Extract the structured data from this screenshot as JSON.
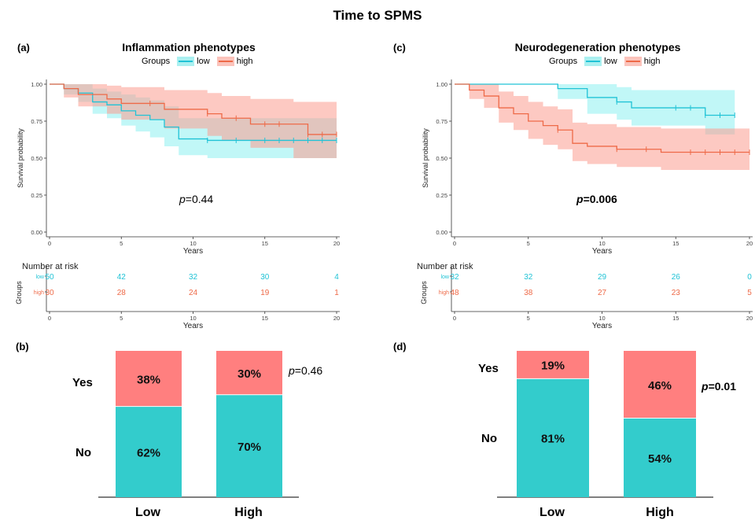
{
  "title": "Time to SPMS",
  "colors": {
    "low_line": "#21c3d6",
    "high_line": "#ee6a48",
    "low_band": "#8ef0f0",
    "high_band": "#fb9c90",
    "bar_no": "#33cccc",
    "bar_yes": "#ff7f7f"
  },
  "chart_data": [
    {
      "panel": "(a)",
      "type": "line",
      "title": "Inflammation phenotypes",
      "legend_title": "Groups",
      "legend": [
        "low",
        "high"
      ],
      "xlabel": "Years",
      "ylabel": "Survival probability",
      "xlim": [
        0,
        20
      ],
      "ylim": [
        0,
        1
      ],
      "xticks": [
        "0",
        "5",
        "10",
        "15",
        "20"
      ],
      "yticks": [
        "0.00",
        "0.25",
        "0.50",
        "0.75",
        "1.00"
      ],
      "pvalue_prefix": "p",
      "pvalue": "=0.44",
      "pvalue_bold": false,
      "series": [
        {
          "name": "low",
          "steps": [
            [
              0,
              1.0
            ],
            [
              1,
              0.97
            ],
            [
              2,
              0.94
            ],
            [
              3,
              0.88
            ],
            [
              4,
              0.86
            ],
            [
              5,
              0.82
            ],
            [
              6,
              0.79
            ],
            [
              7,
              0.76
            ],
            [
              8,
              0.71
            ],
            [
              9,
              0.63
            ],
            [
              11,
              0.62
            ],
            [
              20,
              0.62
            ]
          ],
          "lower": [
            [
              0,
              1.0
            ],
            [
              1,
              0.93
            ],
            [
              2,
              0.88
            ],
            [
              3,
              0.8
            ],
            [
              4,
              0.77
            ],
            [
              5,
              0.72
            ],
            [
              6,
              0.68
            ],
            [
              7,
              0.64
            ],
            [
              8,
              0.58
            ],
            [
              9,
              0.52
            ],
            [
              11,
              0.5
            ],
            [
              17,
              0.5
            ],
            [
              20,
              0.5
            ]
          ],
          "upper": [
            [
              0,
              1.0
            ],
            [
              1,
              1.0
            ],
            [
              2,
              1.0
            ],
            [
              3,
              0.97
            ],
            [
              4,
              0.95
            ],
            [
              5,
              0.93
            ],
            [
              6,
              0.91
            ],
            [
              7,
              0.89
            ],
            [
              8,
              0.85
            ],
            [
              9,
              0.77
            ],
            [
              11,
              0.77
            ],
            [
              20,
              0.77
            ]
          ],
          "censor_x": [
            11,
            13,
            15,
            16,
            17,
            18,
            19,
            20
          ]
        },
        {
          "name": "high",
          "steps": [
            [
              0,
              1.0
            ],
            [
              1,
              0.97
            ],
            [
              2,
              0.93
            ],
            [
              4,
              0.9
            ],
            [
              5,
              0.87
            ],
            [
              7,
              0.87
            ],
            [
              8,
              0.83
            ],
            [
              11,
              0.8
            ],
            [
              12,
              0.77
            ],
            [
              14,
              0.73
            ],
            [
              18,
              0.66
            ],
            [
              20,
              0.66
            ]
          ],
          "lower": [
            [
              0,
              1.0
            ],
            [
              1,
              0.91
            ],
            [
              2,
              0.85
            ],
            [
              4,
              0.8
            ],
            [
              5,
              0.76
            ],
            [
              8,
              0.7
            ],
            [
              11,
              0.65
            ],
            [
              12,
              0.62
            ],
            [
              14,
              0.57
            ],
            [
              17,
              0.5
            ],
            [
              20,
              0.5
            ]
          ],
          "upper": [
            [
              0,
              1.0
            ],
            [
              1,
              1.0
            ],
            [
              4,
              0.99
            ],
            [
              5,
              0.98
            ],
            [
              8,
              0.96
            ],
            [
              11,
              0.94
            ],
            [
              12,
              0.92
            ],
            [
              14,
              0.9
            ],
            [
              17,
              0.88
            ],
            [
              20,
              0.88
            ]
          ],
          "censor_x": [
            7,
            11,
            13,
            15,
            16,
            18,
            19,
            20
          ]
        }
      ],
      "risk_table": {
        "title": "Number at risk",
        "row_axis_label": "Groups",
        "xlabel": "Years",
        "times": [
          "0",
          "5",
          "10",
          "15",
          "20"
        ],
        "rows": [
          {
            "name": "low",
            "values": [
              "50",
              "42",
              "32",
              "30",
              "4"
            ]
          },
          {
            "name": "high",
            "values": [
              "30",
              "28",
              "24",
              "19",
              "1"
            ]
          }
        ]
      }
    },
    {
      "panel": "(c)",
      "type": "line",
      "title": "Neurodegeneration phenotypes",
      "legend_title": "Groups",
      "legend": [
        "low",
        "high"
      ],
      "xlabel": "Years",
      "ylabel": "Survival probability",
      "xlim": [
        0,
        20
      ],
      "ylim": [
        0,
        1
      ],
      "xticks": [
        "0",
        "5",
        "10",
        "15",
        "20"
      ],
      "yticks": [
        "0.00",
        "0.25",
        "0.50",
        "0.75",
        "1.00"
      ],
      "pvalue_prefix": "p",
      "pvalue": "=0.006",
      "pvalue_bold": true,
      "series": [
        {
          "name": "low",
          "steps": [
            [
              0,
              1.0
            ],
            [
              7,
              0.97
            ],
            [
              9,
              0.91
            ],
            [
              11,
              0.88
            ],
            [
              12,
              0.84
            ],
            [
              17,
              0.79
            ],
            [
              19,
              0.79
            ]
          ],
          "lower": [
            [
              0,
              1.0
            ],
            [
              7,
              0.9
            ],
            [
              9,
              0.8
            ],
            [
              11,
              0.76
            ],
            [
              12,
              0.72
            ],
            [
              17,
              0.66
            ],
            [
              19,
              0.66
            ]
          ],
          "upper": [
            [
              0,
              1.0
            ],
            [
              7,
              1.0
            ],
            [
              9,
              1.0
            ],
            [
              11,
              0.98
            ],
            [
              12,
              0.96
            ],
            [
              17,
              0.96
            ],
            [
              19,
              0.96
            ]
          ],
          "censor_x": [
            11,
            15,
            16,
            17,
            18,
            19
          ]
        },
        {
          "name": "high",
          "steps": [
            [
              0,
              1.0
            ],
            [
              1,
              0.96
            ],
            [
              2,
              0.92
            ],
            [
              3,
              0.84
            ],
            [
              4,
              0.8
            ],
            [
              5,
              0.75
            ],
            [
              6,
              0.72
            ],
            [
              7,
              0.69
            ],
            [
              8,
              0.6
            ],
            [
              9,
              0.58
            ],
            [
              11,
              0.56
            ],
            [
              14,
              0.54
            ],
            [
              20,
              0.54
            ]
          ],
          "lower": [
            [
              0,
              1.0
            ],
            [
              1,
              0.9
            ],
            [
              2,
              0.84
            ],
            [
              3,
              0.74
            ],
            [
              4,
              0.69
            ],
            [
              5,
              0.63
            ],
            [
              6,
              0.59
            ],
            [
              7,
              0.56
            ],
            [
              8,
              0.48
            ],
            [
              9,
              0.46
            ],
            [
              11,
              0.44
            ],
            [
              14,
              0.42
            ],
            [
              20,
              0.41
            ]
          ],
          "upper": [
            [
              0,
              1.0
            ],
            [
              1,
              1.0
            ],
            [
              2,
              1.0
            ],
            [
              3,
              0.95
            ],
            [
              4,
              0.92
            ],
            [
              5,
              0.88
            ],
            [
              6,
              0.85
            ],
            [
              7,
              0.83
            ],
            [
              8,
              0.74
            ],
            [
              9,
              0.73
            ],
            [
              11,
              0.71
            ],
            [
              14,
              0.7
            ],
            [
              20,
              0.7
            ]
          ],
          "censor_x": [
            7,
            11,
            13,
            16,
            17,
            18,
            19,
            20
          ]
        }
      ],
      "risk_table": {
        "title": "Number at risk",
        "row_axis_label": "Groups",
        "xlabel": "Years",
        "times": [
          "0",
          "5",
          "10",
          "15",
          "20"
        ],
        "rows": [
          {
            "name": "low",
            "values": [
              "32",
              "32",
              "29",
              "26",
              "0"
            ]
          },
          {
            "name": "high",
            "values": [
              "48",
              "38",
              "27",
              "23",
              "5"
            ]
          }
        ]
      }
    },
    {
      "panel": "(b)",
      "type": "bar",
      "stacked": true,
      "categories": [
        "Low",
        "High"
      ],
      "segment_labels": [
        "Yes",
        "No"
      ],
      "series": [
        {
          "name": "No",
          "values": [
            62,
            70
          ],
          "labels": [
            "62%",
            "70%"
          ]
        },
        {
          "name": "Yes",
          "values": [
            38,
            30
          ],
          "labels": [
            "38%",
            "30%"
          ]
        }
      ],
      "pvalue_prefix": "p",
      "pvalue": "=0.46",
      "pvalue_bold": false
    },
    {
      "panel": "(d)",
      "type": "bar",
      "stacked": true,
      "categories": [
        "Low",
        "High"
      ],
      "segment_labels": [
        "Yes",
        "No"
      ],
      "series": [
        {
          "name": "No",
          "values": [
            81,
            54
          ],
          "labels": [
            "81%",
            "54%"
          ]
        },
        {
          "name": "Yes",
          "values": [
            19,
            46
          ],
          "labels": [
            "19%",
            "46%"
          ]
        }
      ],
      "pvalue_prefix": "p",
      "pvalue": "=0.01",
      "pvalue_bold": true
    }
  ]
}
